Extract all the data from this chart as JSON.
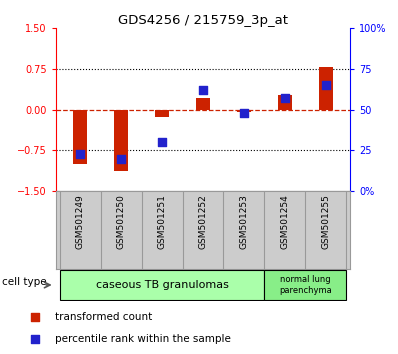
{
  "title": "GDS4256 / 215759_3p_at",
  "samples": [
    "GSM501249",
    "GSM501250",
    "GSM501251",
    "GSM501252",
    "GSM501253",
    "GSM501254",
    "GSM501255"
  ],
  "red_values": [
    -1.0,
    -1.12,
    -0.13,
    0.22,
    -0.05,
    0.28,
    0.78
  ],
  "blue_percentiles": [
    23,
    20,
    30,
    62,
    48,
    57,
    65
  ],
  "ylim_left": [
    -1.5,
    1.5
  ],
  "ylim_right": [
    0,
    100
  ],
  "yticks_left": [
    -1.5,
    -0.75,
    0,
    0.75,
    1.5
  ],
  "yticks_right": [
    0,
    25,
    50,
    75,
    100
  ],
  "bar_color": "#cc2200",
  "dot_color": "#2222cc",
  "hline_color": "#cc2200",
  "cell_group1_label": "caseous TB granulomas",
  "cell_group1_color": "#aaffaa",
  "cell_group1_samples": 5,
  "cell_group2_label": "normal lung\nparenchyma",
  "cell_group2_color": "#88ee88",
  "cell_group2_samples": 2,
  "legend_red_label": "transformed count",
  "legend_blue_label": "percentile rank within the sample",
  "bar_width": 0.35,
  "dot_size": 40,
  "cell_type_label": "cell type",
  "label_bg_color": "#cccccc",
  "label_border_color": "#999999"
}
